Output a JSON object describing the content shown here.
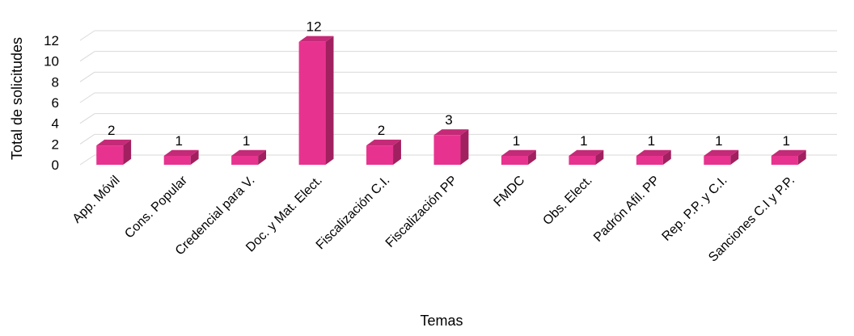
{
  "chart_data": {
    "type": "bar",
    "style": "3d-column",
    "categories": [
      "App. Móvil",
      "Cons. Popular",
      "Credencial para V.",
      "Doc. y Mat. Elect.",
      "Fiscalización C.I.",
      "Fiscalización PP",
      "FMDC",
      "Obs. Elect.",
      "Padrón Afil. PP",
      "Rep. P.P. y C.I.",
      "Sanciones C.I y P.P."
    ],
    "values": [
      2,
      1,
      1,
      12,
      2,
      3,
      1,
      1,
      1,
      1,
      1
    ],
    "data_labels": [
      "2",
      "1",
      "1",
      "12",
      "2",
      "3",
      "1",
      "1",
      "1",
      "1",
      "1"
    ],
    "yticks": [
      "0",
      "2",
      "4",
      "6",
      "8",
      "10",
      "12"
    ],
    "ylim": [
      0,
      12
    ],
    "ystep": 2,
    "xlabel": "Temas",
    "ylabel": "Total de solicitudes",
    "grid": true,
    "legend": "none",
    "colors": {
      "bar_front": "#E7338F",
      "bar_side": "#A1205F",
      "bar_top": "#C42A77",
      "grid": "#D9D9D9"
    }
  }
}
